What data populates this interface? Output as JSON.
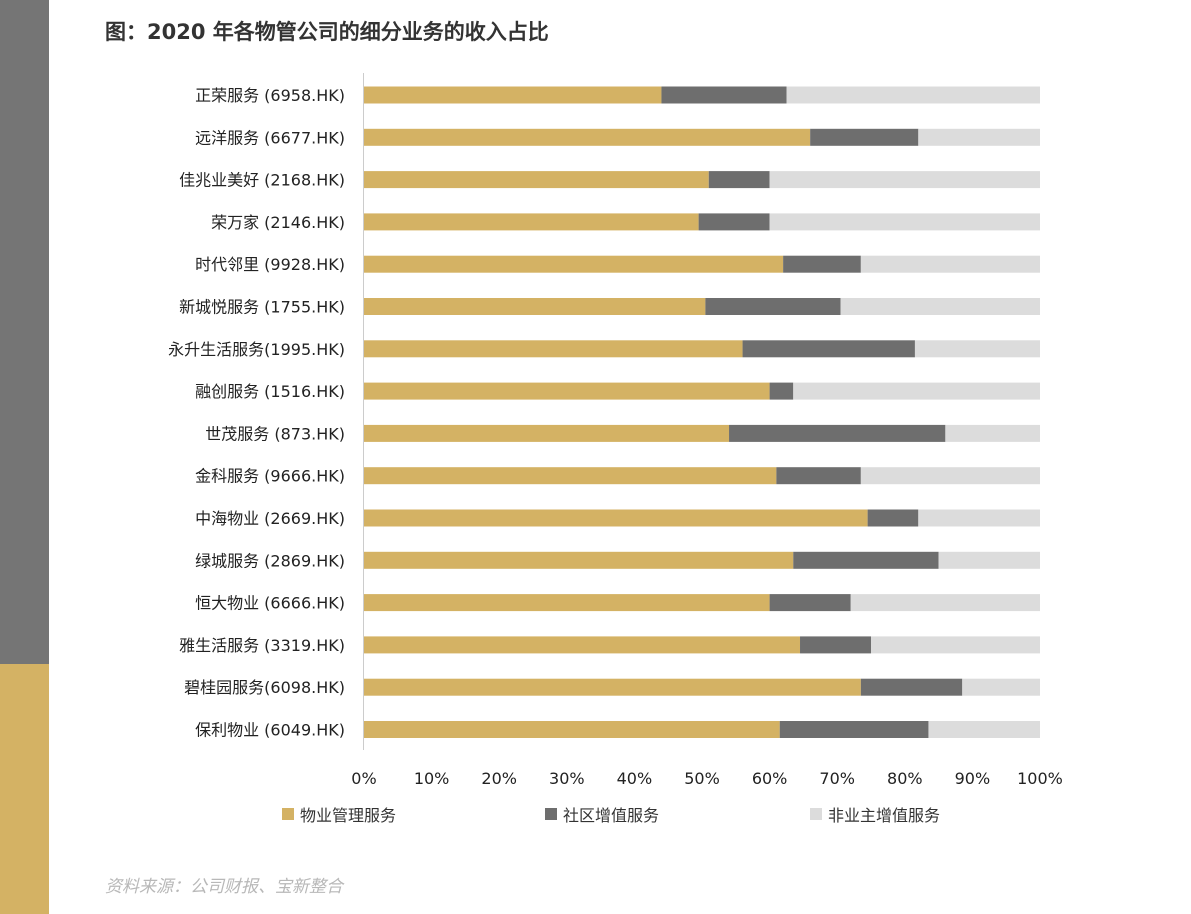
{
  "title": "图：2020 年各物管公司的细分业务的收入占比",
  "source": "资料来源：公司财报、宝新整合",
  "colors": {
    "side_top": "#757575",
    "side_bottom": "#d4b264",
    "series": [
      "#d4b264",
      "#6e6e6e",
      "#dcdcdc"
    ],
    "axis": "#cccccc"
  },
  "legend": [
    "物业管理服务",
    "社区增值服务",
    "非业主增值服务"
  ],
  "chart_data": {
    "type": "bar",
    "orientation": "horizontal",
    "stacked": true,
    "percent": true,
    "categories": [
      "正荣服务 (6958.HK)",
      "远洋服务 (6677.HK)",
      "佳兆业美好 (2168.HK)",
      "荣万家 (2146.HK)",
      "时代邻里 (9928.HK)",
      "新城悦服务 (1755.HK)",
      "永升生活服务(1995.HK)",
      "融创服务 (1516.HK)",
      "世茂服务 (873.HK)",
      "金科服务 (9666.HK)",
      "中海物业 (2669.HK)",
      "绿城服务 (2869.HK)",
      "恒大物业 (6666.HK)",
      "雅生活服务 (3319.HK)",
      "碧桂园服务(6098.HK)",
      "保利物业 (6049.HK)"
    ],
    "series": [
      {
        "name": "物业管理服务",
        "values": [
          44,
          66,
          51,
          49.5,
          62,
          50.5,
          56,
          60,
          54,
          61,
          74.5,
          63.5,
          60,
          64.5,
          73.5,
          61.5
        ]
      },
      {
        "name": "社区增值服务",
        "values": [
          18.5,
          16,
          9,
          10.5,
          11.5,
          20,
          25.5,
          3.5,
          32,
          12.5,
          7.5,
          21.5,
          12,
          10.5,
          15,
          22
        ]
      },
      {
        "name": "非业主增值服务",
        "values": [
          37.5,
          18,
          40,
          40,
          26.5,
          29.5,
          18.5,
          36.5,
          14,
          26.5,
          18,
          15,
          28,
          25,
          11.5,
          16.5
        ]
      }
    ],
    "xlim": [
      0,
      100
    ],
    "xticks": [
      "0%",
      "10%",
      "20%",
      "30%",
      "40%",
      "50%",
      "60%",
      "70%",
      "80%",
      "90%",
      "100%"
    ],
    "legend_position": "bottom",
    "grid": false
  }
}
